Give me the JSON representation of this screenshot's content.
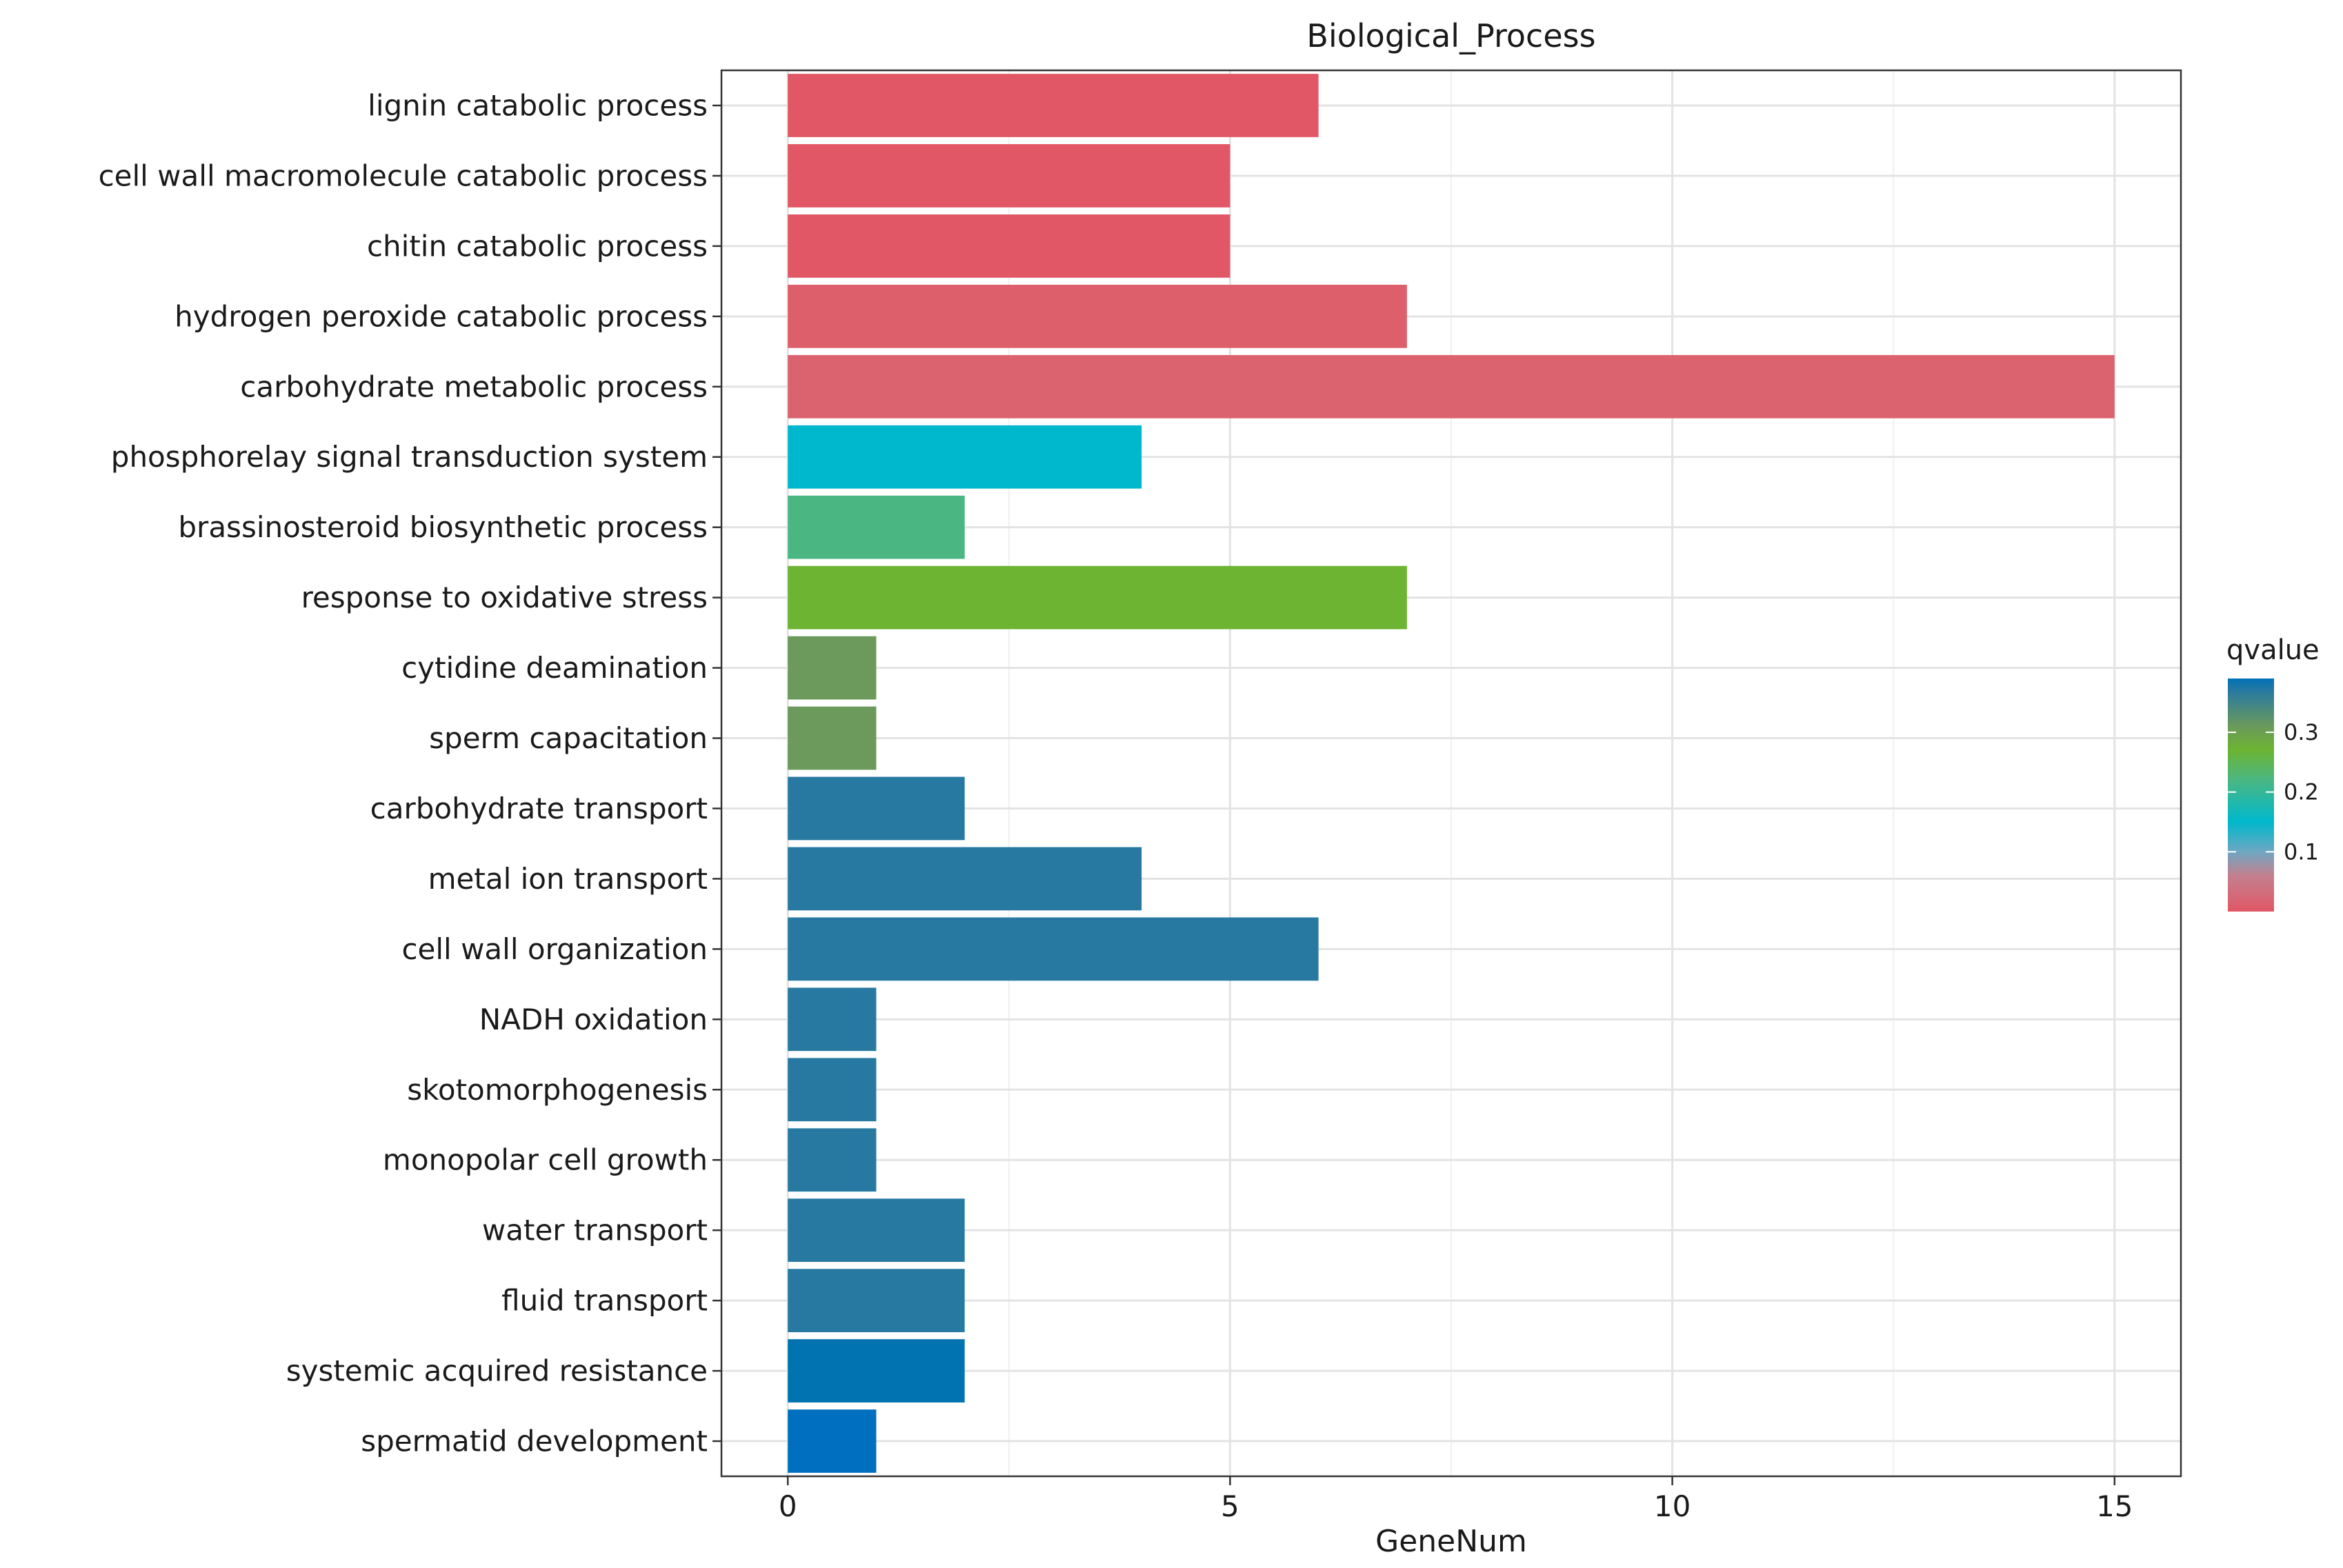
{
  "chart_data": {
    "type": "bar",
    "orientation": "horizontal",
    "title": "Biological_Process",
    "xlabel": "GeneNum",
    "ylabel": "",
    "xlim": [
      -0.75,
      15.75
    ],
    "xticks": [
      0,
      5,
      10,
      15
    ],
    "grid": true,
    "categories": [
      "lignin catabolic process",
      "cell wall macromolecule catabolic process",
      "chitin catabolic process",
      "hydrogen peroxide catabolic process",
      "carbohydrate metabolic process",
      "phosphorelay signal transduction system",
      "brassinosteroid biosynthetic process",
      "response to oxidative stress",
      "cytidine deamination",
      "sperm capacitation",
      "carbohydrate transport",
      "metal ion transport",
      "cell wall organization",
      "NADH oxidation",
      "skotomorphogenesis",
      "monopolar cell growth",
      "water transport",
      "fluid transport",
      "systemic acquired resistance",
      "spermatid development"
    ],
    "values": [
      6,
      5,
      5,
      7,
      15,
      4,
      2,
      7,
      1,
      1,
      2,
      4,
      6,
      1,
      1,
      1,
      2,
      2,
      2,
      1
    ],
    "qvalues": [
      0.002,
      0.002,
      0.002,
      0.02,
      0.035,
      0.15,
      0.22,
      0.27,
      0.31,
      0.31,
      0.37,
      0.37,
      0.37,
      0.37,
      0.37,
      0.37,
      0.37,
      0.37,
      0.38,
      0.39
    ],
    "bar_colors": [
      "#E15766",
      "#E15766",
      "#E15766",
      "#DE5F6C",
      "#DB6370",
      "#00B8CD",
      "#4AB783",
      "#6CB432",
      "#6B9A5C",
      "#6B9A5C",
      "#2779A2",
      "#2779A2",
      "#2779A2",
      "#2779A2",
      "#2779A2",
      "#2779A2",
      "#2779A2",
      "#2779A2",
      "#0073B0",
      "#006FBF"
    ],
    "legend": {
      "title": "qvalue",
      "placement": "right",
      "range": [
        0,
        0.39
      ],
      "ticks": [
        0.1,
        0.2,
        0.3
      ],
      "tick_labels": [
        "0.1",
        "0.2",
        "0.3"
      ],
      "gradient": [
        {
          "q": 0.0,
          "color": "#E15766"
        },
        {
          "q": 0.06,
          "color": "#C3808E"
        },
        {
          "q": 0.1,
          "color": "#6FA7C2"
        },
        {
          "q": 0.15,
          "color": "#00B8CD"
        },
        {
          "q": 0.22,
          "color": "#4AB783"
        },
        {
          "q": 0.27,
          "color": "#6CB432"
        },
        {
          "q": 0.31,
          "color": "#6B9A5C"
        },
        {
          "q": 0.37,
          "color": "#2779A2"
        },
        {
          "q": 0.39,
          "color": "#0072B5"
        }
      ]
    }
  }
}
